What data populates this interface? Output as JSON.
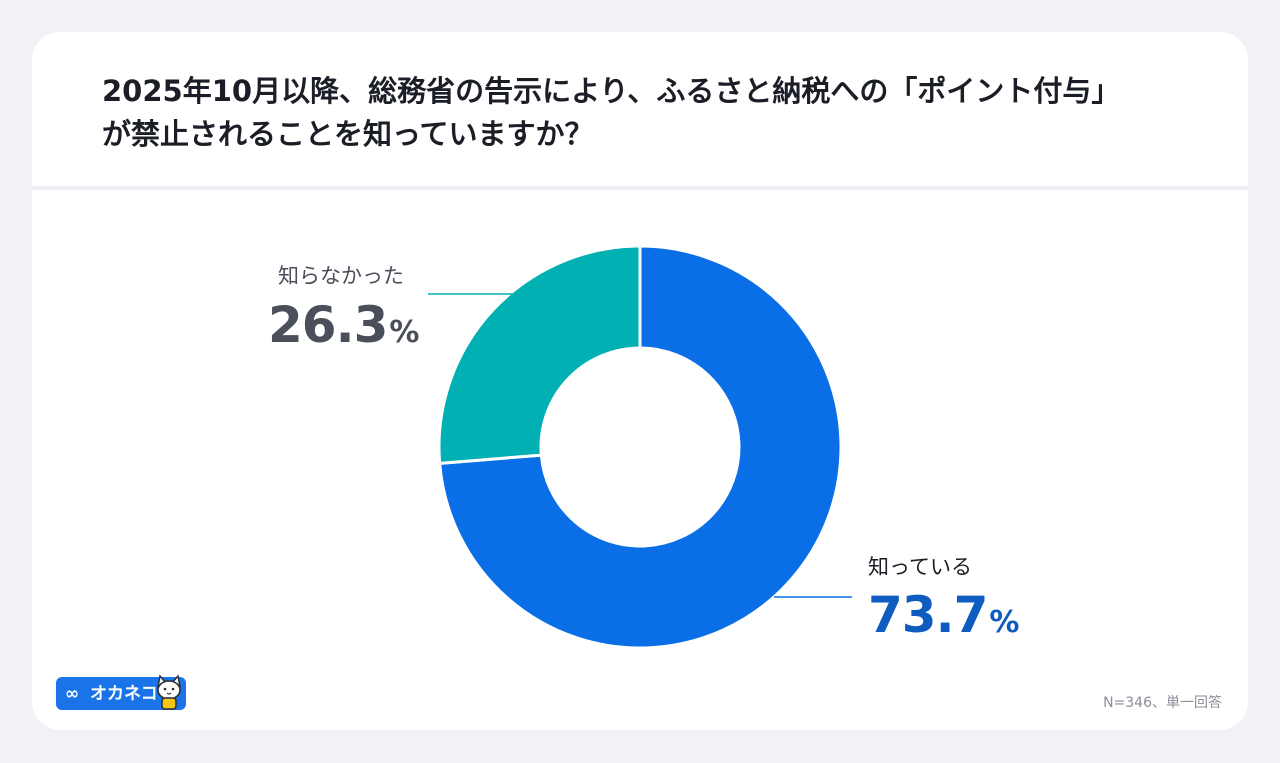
{
  "title_lines": [
    "2025年10月以降、総務省の告示により、ふるさと納税への「ポイント付与」",
    "が禁止されることを知っていますか？"
  ],
  "footnote": "N=346、単一回答",
  "brand": {
    "symbol": "∞",
    "name": "オカネコ",
    "color": "#1a73e8"
  },
  "chart_data": {
    "type": "pie",
    "variant": "donut",
    "slices": [
      {
        "label": "知っている",
        "value": 73.7,
        "value_text": "73.7",
        "color": "#0a6fe6",
        "label_color": "#0f5cc0"
      },
      {
        "label": "知らなかった",
        "value": 26.3,
        "value_text": "26.3",
        "color": "#00b0b3",
        "label_color": "#4a4f5a"
      }
    ],
    "unit": "%"
  }
}
